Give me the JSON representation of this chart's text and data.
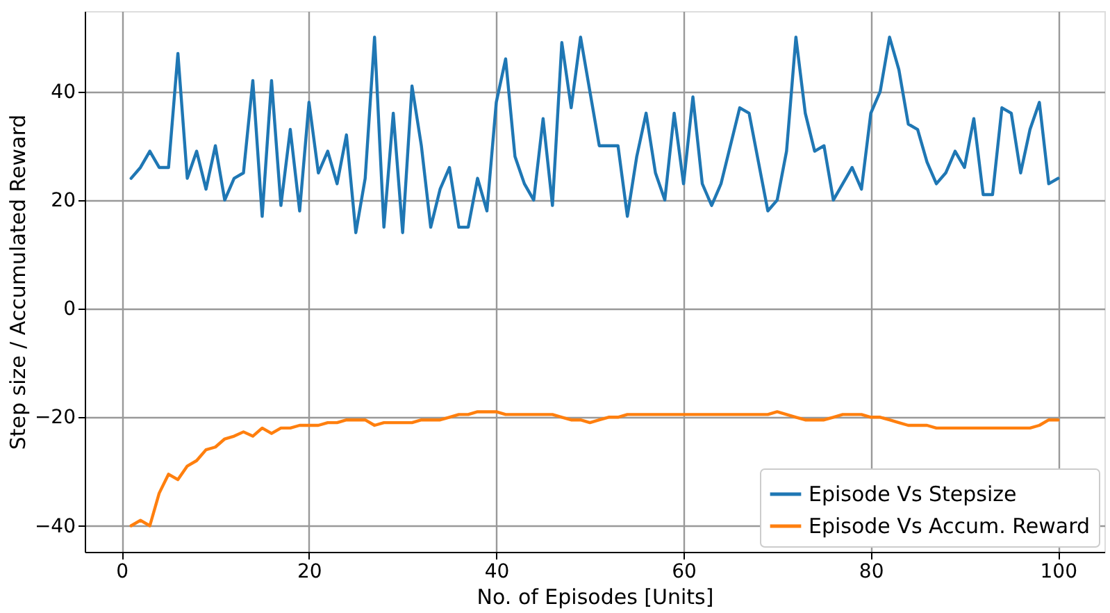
{
  "chart_data": {
    "type": "line",
    "xlabel": "No. of Episodes [Units]",
    "ylabel": "Step size / Accumulated Reward",
    "xlim": [
      -3.95,
      104.95
    ],
    "xticks": [
      0,
      20,
      40,
      60,
      80,
      100
    ],
    "ylim": [
      -44.8,
      54.8
    ],
    "yticks": [
      -40,
      -20,
      0,
      20,
      40
    ],
    "grid": true,
    "legend": "bottom right",
    "line_style": "solid",
    "marker": "none",
    "series": [
      {
        "name": "Episode Vs Stepsize",
        "color": "#1f77b4",
        "values": [
          24,
          26,
          29,
          26,
          26,
          47,
          24,
          29,
          22,
          30,
          20,
          24,
          25,
          42,
          17,
          42,
          19,
          33,
          18,
          38,
          25,
          29,
          23,
          32,
          14,
          24,
          50,
          15,
          36,
          14,
          41,
          30,
          15,
          22,
          26,
          15,
          15,
          24,
          18,
          38,
          46,
          28,
          23,
          20,
          35,
          19,
          49,
          37,
          50,
          40,
          30,
          30,
          30,
          17,
          28,
          36,
          25,
          20,
          36,
          23,
          39,
          23,
          19,
          23,
          30,
          37,
          36,
          27,
          18,
          20,
          29,
          50,
          36,
          29,
          30,
          20,
          23,
          26,
          22,
          36,
          40,
          50,
          44,
          34,
          33,
          27,
          23,
          25,
          29,
          26,
          35,
          21,
          21,
          37,
          36,
          25,
          33,
          38,
          23,
          24
        ]
      },
      {
        "name": "Episode Vs Accum. Reward",
        "color": "#ff7f0e",
        "values": [
          -40,
          -39,
          -40,
          -34,
          -30.5,
          -31.5,
          -29,
          -28,
          -26,
          -25.5,
          -24,
          -23.5,
          -22.7,
          -23.5,
          -22,
          -23,
          -22,
          -22,
          -21.5,
          -21.5,
          -21.5,
          -21,
          -21,
          -20.5,
          -20.5,
          -20.5,
          -21.5,
          -21,
          -21,
          -21,
          -21,
          -20.5,
          -20.5,
          -20.5,
          -20,
          -19.5,
          -19.5,
          -19,
          -19,
          -19,
          -19.5,
          -19.5,
          -19.5,
          -19.5,
          -19.5,
          -19.5,
          -20,
          -20.5,
          -20.5,
          -21,
          -20.5,
          -20,
          -20,
          -19.5,
          -19.5,
          -19.5,
          -19.5,
          -19.5,
          -19.5,
          -19.5,
          -19.5,
          -19.5,
          -19.5,
          -19.5,
          -19.5,
          -19.5,
          -19.5,
          -19.5,
          -19.5,
          -19,
          -19.5,
          -20,
          -20.5,
          -20.5,
          -20.5,
          -20,
          -19.5,
          -19.5,
          -19.5,
          -20,
          -20,
          -20.5,
          -21,
          -21.5,
          -21.5,
          -21.5,
          -22,
          -22,
          -22,
          -22,
          -22,
          -22,
          -22,
          -22,
          -22,
          -22,
          -22,
          -21.5,
          -20.5,
          -20.5
        ]
      }
    ],
    "x": [
      1,
      2,
      3,
      4,
      5,
      6,
      7,
      8,
      9,
      10,
      11,
      12,
      13,
      14,
      15,
      16,
      17,
      18,
      19,
      20,
      21,
      22,
      23,
      24,
      25,
      26,
      27,
      28,
      29,
      30,
      31,
      32,
      33,
      34,
      35,
      36,
      37,
      38,
      39,
      40,
      41,
      42,
      43,
      44,
      45,
      46,
      47,
      48,
      49,
      50,
      51,
      52,
      53,
      54,
      55,
      56,
      57,
      58,
      59,
      60,
      61,
      62,
      63,
      64,
      65,
      66,
      67,
      68,
      69,
      70,
      71,
      72,
      73,
      74,
      75,
      76,
      77,
      78,
      79,
      80,
      81,
      82,
      83,
      84,
      85,
      86,
      87,
      88,
      89,
      90,
      91,
      92,
      93,
      94,
      95,
      96,
      97,
      98,
      99,
      100
    ]
  }
}
